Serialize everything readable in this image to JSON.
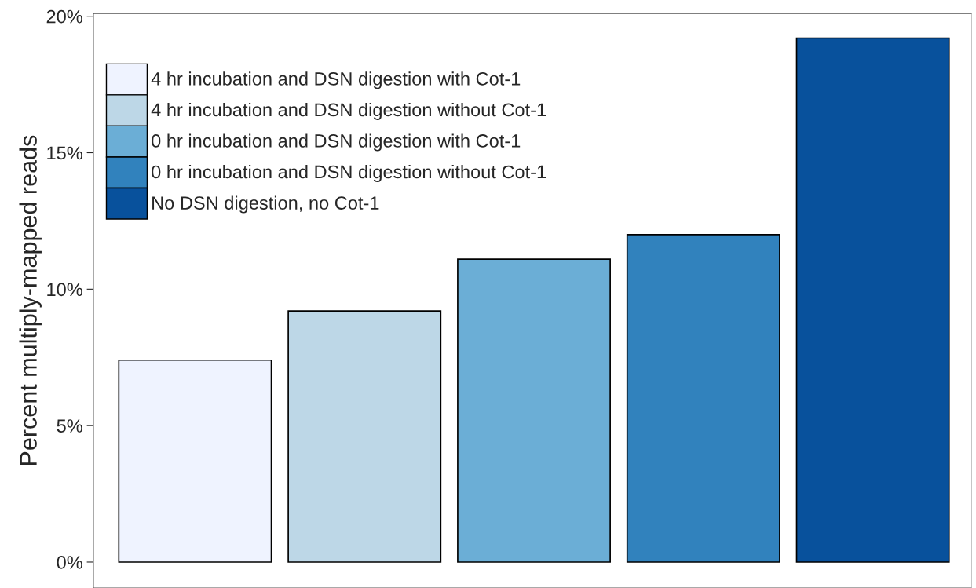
{
  "chart_data": {
    "type": "bar",
    "ylabel": "Percent multiply-mapped reads",
    "categories": [
      null,
      null,
      null,
      null,
      null
    ],
    "series": [
      {
        "name": "4 hr incubation and DSN digestion with Cot-1",
        "color": "#eff3ff",
        "values": [
          7.4,
          null,
          null,
          null,
          null
        ]
      },
      {
        "name": "4 hr incubation and DSN digestion without Cot-1",
        "color": "#bdd7e7",
        "values": [
          null,
          9.2,
          null,
          null,
          null
        ]
      },
      {
        "name": "0 hr incubation and DSN digestion with Cot-1",
        "color": "#6baed6",
        "values": [
          null,
          null,
          11.1,
          null,
          null
        ]
      },
      {
        "name": "0 hr incubation and DSN digestion without Cot-1",
        "color": "#3182bd",
        "values": [
          null,
          null,
          null,
          12.0,
          null
        ]
      },
      {
        "name": "No DSN digestion, no Cot-1",
        "color": "#08519c",
        "values": [
          null,
          null,
          null,
          null,
          19.2
        ]
      }
    ],
    "ylim": [
      -0.95,
      20.1
    ],
    "yticks": [
      {
        "value": 0,
        "label": "0%"
      },
      {
        "value": 5,
        "label": "5%"
      },
      {
        "value": 10,
        "label": "10%"
      },
      {
        "value": 15,
        "label": "15%"
      },
      {
        "value": 20,
        "label": "20%"
      }
    ],
    "grid": false,
    "legend": "top left",
    "tick_labels": "y"
  }
}
